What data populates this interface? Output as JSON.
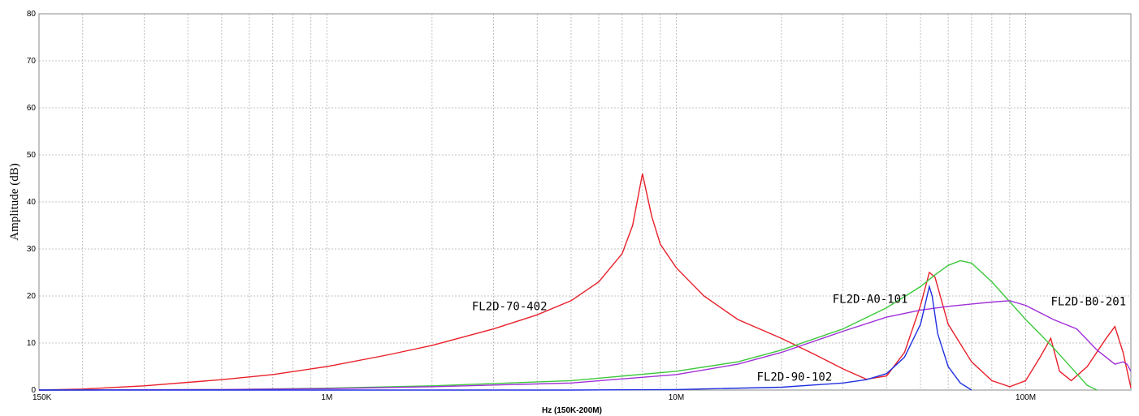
{
  "chart_data": {
    "type": "line",
    "title": "",
    "xlabel": "Hz  (150K-200M)",
    "ylabel": "Amplitude (dB)",
    "x_scale": "log",
    "xlim": [
      150000,
      200000000
    ],
    "ylim": [
      0,
      80
    ],
    "yticks": [
      0,
      10,
      20,
      30,
      40,
      50,
      60,
      70,
      80
    ],
    "xtick_labels": [
      {
        "value": 150000,
        "label": "150K"
      },
      {
        "value": 1000000,
        "label": "1M"
      },
      {
        "value": 10000000,
        "label": "10M"
      },
      {
        "value": 100000000,
        "label": "100M"
      }
    ],
    "grid": true,
    "series": [
      {
        "name": "FL2D-70-402",
        "color": "#e8202a",
        "points": [
          [
            150000,
            0
          ],
          [
            200000,
            0.2
          ],
          [
            300000,
            0.9
          ],
          [
            500000,
            2.2
          ],
          [
            700000,
            3.3
          ],
          [
            1000000,
            5
          ],
          [
            1500000,
            7.5
          ],
          [
            2000000,
            9.5
          ],
          [
            3000000,
            13
          ],
          [
            4000000,
            16
          ],
          [
            5000000,
            19
          ],
          [
            6000000,
            23
          ],
          [
            7000000,
            29
          ],
          [
            7500000,
            35
          ],
          [
            8000000,
            46
          ],
          [
            8500000,
            37
          ],
          [
            9000000,
            31
          ],
          [
            10000000,
            26
          ],
          [
            12000000,
            20
          ],
          [
            15000000,
            15
          ],
          [
            20000000,
            11
          ],
          [
            25000000,
            7.5
          ],
          [
            30000000,
            4.5
          ],
          [
            35000000,
            2.3
          ],
          [
            40000000,
            3
          ],
          [
            45000000,
            8
          ],
          [
            50000000,
            18
          ],
          [
            53000000,
            25
          ],
          [
            55000000,
            24
          ],
          [
            60000000,
            14
          ],
          [
            70000000,
            6
          ],
          [
            80000000,
            2
          ],
          [
            90000000,
            0.7
          ],
          [
            100000000,
            2
          ],
          [
            110000000,
            7
          ],
          [
            118000000,
            11
          ],
          [
            125000000,
            4
          ],
          [
            135000000,
            2
          ],
          [
            150000000,
            5
          ],
          [
            170000000,
            11
          ],
          [
            180000000,
            13.5
          ],
          [
            190000000,
            8
          ],
          [
            200000000,
            0.5
          ]
        ]
      },
      {
        "name": "FL2D-A0-101",
        "color": "#3cc83c",
        "points": [
          [
            150000,
            0
          ],
          [
            500000,
            0.1
          ],
          [
            1000000,
            0.4
          ],
          [
            2000000,
            0.9
          ],
          [
            5000000,
            2
          ],
          [
            10000000,
            4
          ],
          [
            15000000,
            6
          ],
          [
            20000000,
            8.5
          ],
          [
            30000000,
            13
          ],
          [
            40000000,
            17.5
          ],
          [
            50000000,
            22
          ],
          [
            55000000,
            24.5
          ],
          [
            60000000,
            26.5
          ],
          [
            65000000,
            27.5
          ],
          [
            70000000,
            27
          ],
          [
            80000000,
            23
          ],
          [
            100000000,
            15
          ],
          [
            120000000,
            9
          ],
          [
            150000000,
            1
          ],
          [
            160000000,
            0
          ]
        ]
      },
      {
        "name": "FL2D-B0-201",
        "color": "#a030d8",
        "points": [
          [
            150000,
            0
          ],
          [
            500000,
            0.1
          ],
          [
            1000000,
            0.3
          ],
          [
            2000000,
            0.7
          ],
          [
            5000000,
            1.5
          ],
          [
            10000000,
            3.3
          ],
          [
            15000000,
            5.5
          ],
          [
            20000000,
            8
          ],
          [
            30000000,
            12.5
          ],
          [
            40000000,
            15.5
          ],
          [
            50000000,
            17
          ],
          [
            60000000,
            17.8
          ],
          [
            70000000,
            18.3
          ],
          [
            80000000,
            18.7
          ],
          [
            90000000,
            19
          ],
          [
            100000000,
            18
          ],
          [
            120000000,
            15
          ],
          [
            140000000,
            13
          ],
          [
            160000000,
            8.5
          ],
          [
            180000000,
            5.5
          ],
          [
            190000000,
            6
          ],
          [
            195000000,
            5.5
          ],
          [
            200000000,
            4
          ]
        ]
      },
      {
        "name": "FL2D-90-102",
        "color": "#2030e0",
        "points": [
          [
            150000,
            0
          ],
          [
            1000000,
            0
          ],
          [
            5000000,
            0
          ],
          [
            10000000,
            0.1
          ],
          [
            20000000,
            0.6
          ],
          [
            30000000,
            1.5
          ],
          [
            35000000,
            2.2
          ],
          [
            40000000,
            3.5
          ],
          [
            45000000,
            7
          ],
          [
            50000000,
            14
          ],
          [
            53000000,
            22
          ],
          [
            54000000,
            20
          ],
          [
            56000000,
            12
          ],
          [
            60000000,
            5
          ],
          [
            65000000,
            1.5
          ],
          [
            70000000,
            0
          ]
        ]
      }
    ],
    "annotations": [
      {
        "text": "FL2D-70-402",
        "series": "FL2D-70-402",
        "anchor_x": 2600000,
        "anchor_y": 17
      },
      {
        "text": "FL2D-A0-101",
        "series": "FL2D-A0-101",
        "anchor_x": 28000000,
        "anchor_y": 18.5
      },
      {
        "text": "FL2D-B0-201",
        "series": "FL2D-B0-201",
        "anchor_x": 118000000,
        "anchor_y": 18
      },
      {
        "text": "FL2D-90-102",
        "series": "FL2D-90-102",
        "anchor_x": 17000000,
        "anchor_y": 2
      }
    ]
  }
}
